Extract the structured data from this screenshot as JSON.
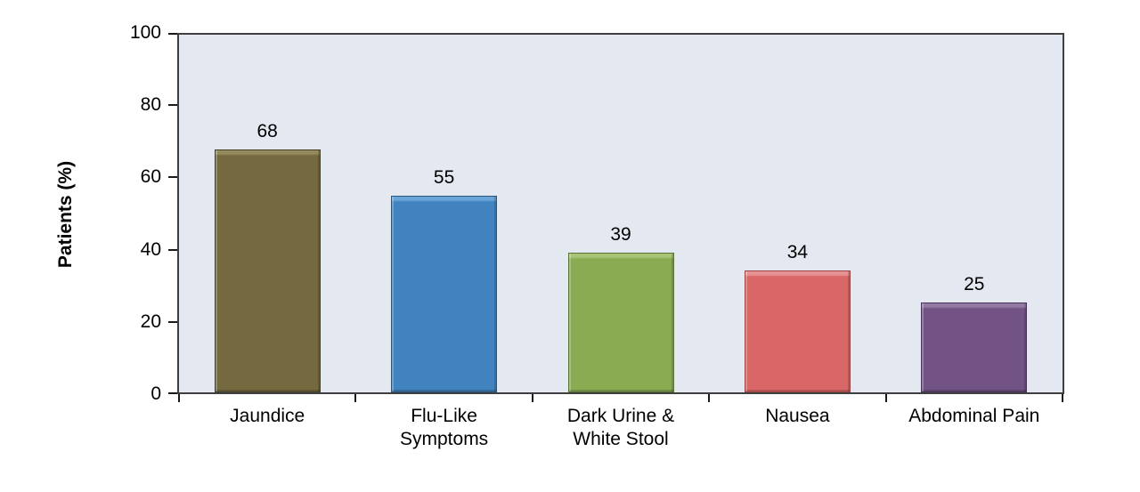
{
  "chart_data": {
    "type": "bar",
    "title": "",
    "xlabel": "",
    "ylabel": "Patients (%)",
    "ylim": [
      0,
      100
    ],
    "yticks": [
      0,
      20,
      40,
      60,
      80,
      100
    ],
    "grid": false,
    "legend": "none",
    "plot_background": "#e4e9f1",
    "axis_color": "#3f3f3f",
    "categories": [
      "Jaundice",
      "Flu-Like Symptoms",
      "Dark Urine & White Stool",
      "Nausea",
      "Abdominal Pain"
    ],
    "category_label_lines": [
      [
        "Jaundice"
      ],
      [
        "Flu-Like",
        "Symptoms"
      ],
      [
        "Dark Urine &",
        "White Stool"
      ],
      [
        "Nausea"
      ],
      [
        "Abdominal Pain"
      ]
    ],
    "values": [
      68,
      55,
      39,
      34,
      25
    ],
    "data_labels": [
      "68",
      "55",
      "39",
      "34",
      "25"
    ],
    "bar_colors": [
      {
        "fill": "#75693f",
        "border": "#45402a",
        "highlight": "#958a5e"
      },
      {
        "fill": "#4083bf",
        "border": "#29557f",
        "highlight": "#6ba4d6"
      },
      {
        "fill": "#8aab52",
        "border": "#5a7233",
        "highlight": "#a9c477"
      },
      {
        "fill": "#d96767",
        "border": "#9c4343",
        "highlight": "#e69292"
      },
      {
        "fill": "#735386",
        "border": "#47325a",
        "highlight": "#927aa3"
      }
    ]
  }
}
